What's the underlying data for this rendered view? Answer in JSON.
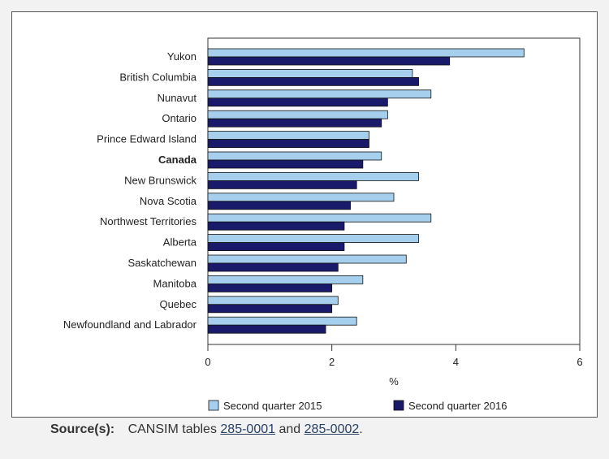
{
  "chart_data": {
    "type": "bar",
    "orientation": "horizontal",
    "categories": [
      "Yukon",
      "British Columbia",
      "Nunavut",
      "Ontario",
      "Prince Edward Island",
      "Canada",
      "New Brunswick",
      "Nova Scotia",
      "Northwest Territories",
      "Alberta",
      "Saskatchewan",
      "Manitoba",
      "Quebec",
      "Newfoundland and Labrador"
    ],
    "highlight_category": "Canada",
    "series": [
      {
        "name": "Second quarter 2015",
        "color": "#a6cfee",
        "values": [
          5.1,
          3.3,
          3.6,
          2.9,
          2.6,
          2.8,
          3.4,
          3.0,
          3.6,
          3.4,
          3.2,
          2.5,
          2.1,
          2.4
        ]
      },
      {
        "name": "Second quarter 2016",
        "color": "#1a1a6b",
        "values": [
          3.9,
          3.4,
          2.9,
          2.8,
          2.6,
          2.5,
          2.4,
          2.3,
          2.2,
          2.2,
          2.1,
          2.0,
          2.0,
          1.9
        ]
      }
    ],
    "xlim": [
      0,
      6
    ],
    "xticks": [
      "0",
      "2",
      "4",
      "6"
    ],
    "xlabel": "%",
    "ylabel": "",
    "legend_position": "bottom"
  },
  "source": {
    "label": "Source(s):",
    "text_before": "CANSIM tables",
    "link1": "285-0001",
    "text_mid": "and",
    "link2": "285-0002",
    "text_end": "."
  }
}
